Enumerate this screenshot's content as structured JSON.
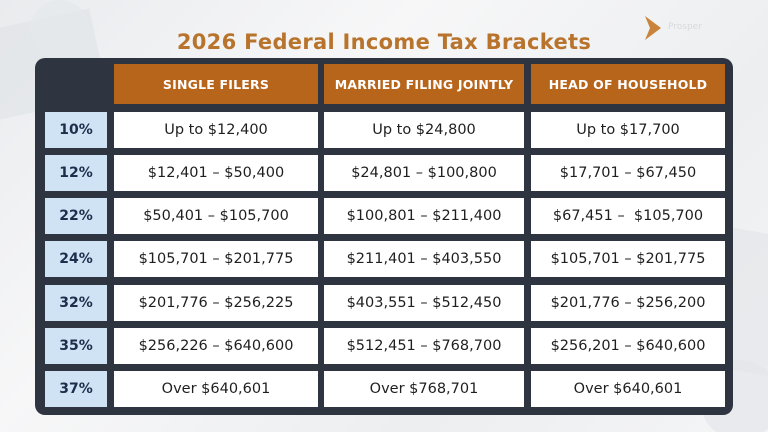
{
  "title": "2026 Federal Income Tax Brackets",
  "logo_text": "Prosper",
  "colors": {
    "title": "#b8742c",
    "header_bg": "#b8651c",
    "panel_bg": "#2f3540",
    "rate_bg": "#cfe3f5",
    "cell_bg": "#ffffff"
  },
  "table": {
    "headers": [
      "SINGLE FILERS",
      "MARRIED FILING JOINTLY",
      "HEAD OF HOUSEHOLD"
    ],
    "rows": [
      {
        "rate": "10%",
        "values": [
          "Up to $12,400",
          "Up to $24,800",
          "Up to $17,700"
        ]
      },
      {
        "rate": "12%",
        "values": [
          "$12,401 – $50,400",
          "$24,801 – $100,800",
          "$17,701 – $67,450"
        ]
      },
      {
        "rate": "22%",
        "values": [
          "$50,401 – $105,700",
          "$100,801 – $211,400",
          "$67,451 –  $105,700"
        ]
      },
      {
        "rate": "24%",
        "values": [
          "$105,701 – $201,775",
          "$211,401 – $403,550",
          "$105,701 – $201,775"
        ]
      },
      {
        "rate": "32%",
        "values": [
          "$201,776 – $256,225",
          "$403,551 – $512,450",
          "$201,776 – $256,200"
        ]
      },
      {
        "rate": "35%",
        "values": [
          "$256,226 – $640,600",
          "$512,451 – $768,700",
          "$256,201 – $640,600"
        ]
      },
      {
        "rate": "37%",
        "values": [
          "Over $640,601",
          "Over $768,701",
          "Over $640,601"
        ]
      }
    ]
  }
}
